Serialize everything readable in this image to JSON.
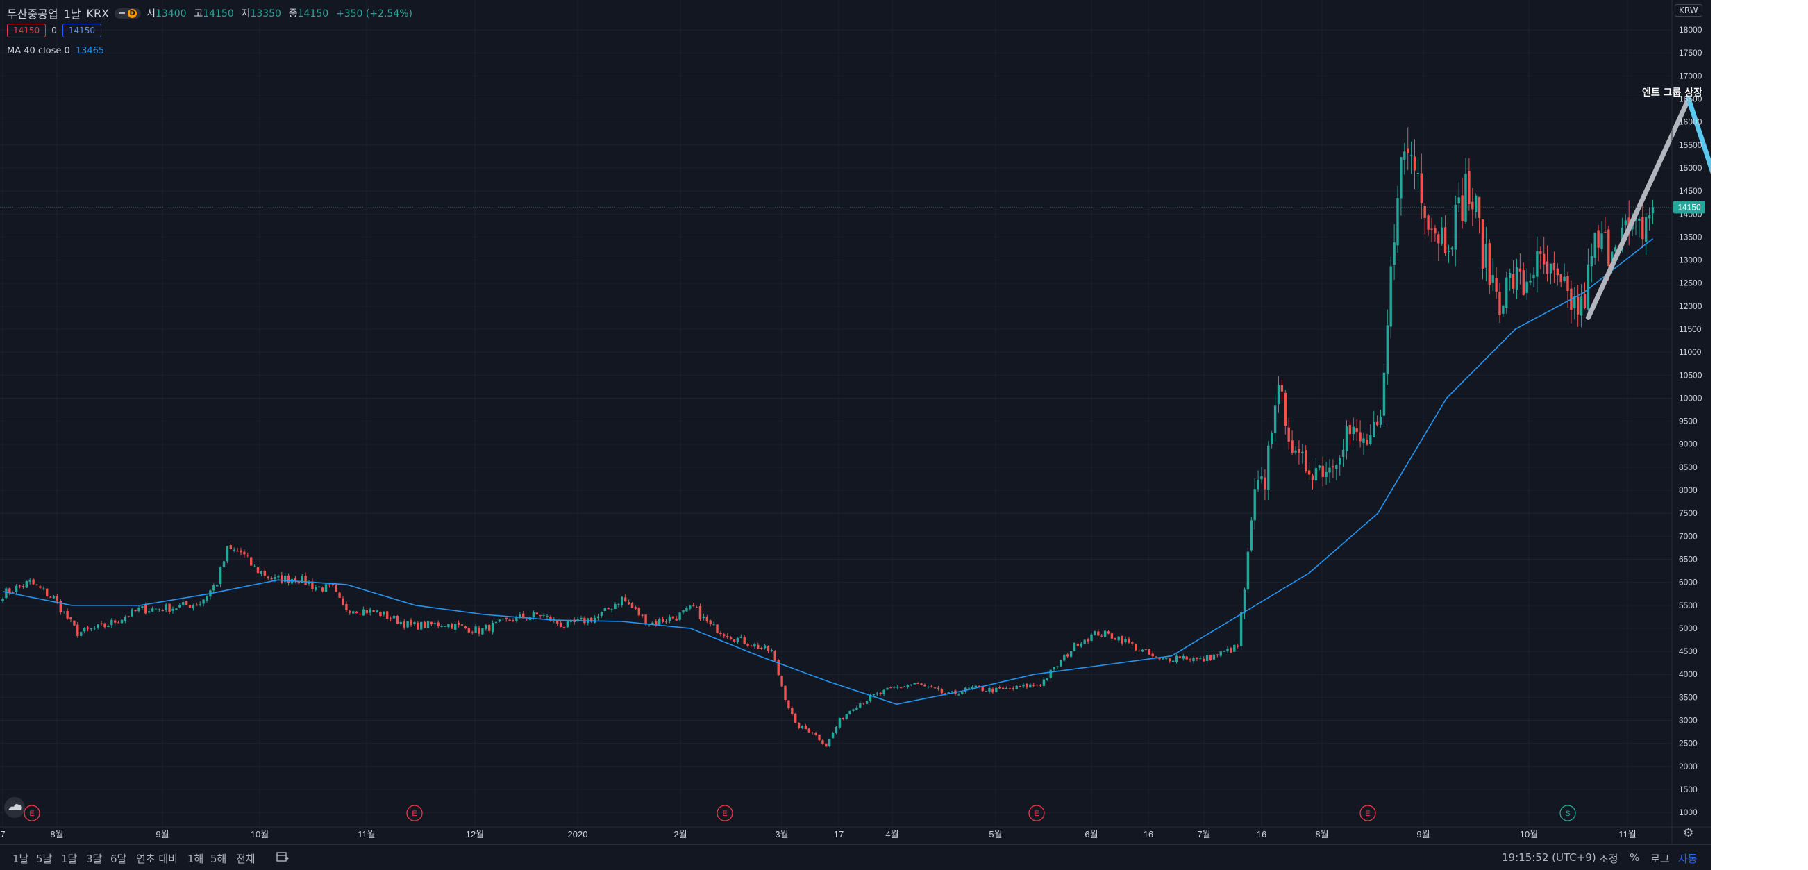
{
  "legend": {
    "symbol": "두산중공업",
    "interval": "1날",
    "exchange": "KRX",
    "status_icon": "minus-icon",
    "d_badge": "D",
    "o_label": "시",
    "o_val": "13400",
    "h_label": "고",
    "h_val": "14150",
    "l_label": "저",
    "l_val": "13350",
    "c_label": "종",
    "c_val": "14150",
    "change": "+350 (+2.54%)",
    "bid": "14150",
    "spread": "0",
    "ask": "14150",
    "ma_label": "MA 40 close 0",
    "ma_value": "13465"
  },
  "currency": "KRW",
  "price_badge": "14150",
  "annotation": "엔트 그룹 상장",
  "events": [
    "E",
    "E",
    "E",
    "E",
    "E",
    "S"
  ],
  "bottom_bar": {
    "ranges": [
      "1날",
      "5날",
      "1달",
      "3달",
      "6달",
      "연초 대비",
      "1해",
      "5해",
      "전체"
    ],
    "compare_icon": "calendar-range-icon",
    "time": "19:15:52 (UTC+9)",
    "adjust": "조정",
    "percent": "%",
    "log": "로그",
    "auto": "자동"
  },
  "colors": {
    "background": "#131722",
    "up": "#26a69a",
    "down": "#ef5350",
    "ma": "#2196f3",
    "grid": "#1e2230",
    "trend_white": "#b2b5be",
    "trend_cyan": "#5bc8f0"
  },
  "chart_data": {
    "type": "candlestick",
    "x_tick_labels": [
      "7",
      "8월",
      "9월",
      "10월",
      "11월",
      "12월",
      "2020",
      "2월",
      "3월",
      "17",
      "4월",
      "5월",
      "6월",
      "16",
      "7월",
      "16",
      "8월",
      "9월",
      "10월",
      "11월"
    ],
    "y_ticks": [
      1000,
      1500,
      2000,
      2500,
      3000,
      3500,
      4000,
      4500,
      5000,
      5500,
      6000,
      6500,
      7000,
      7500,
      8000,
      8500,
      9000,
      9500,
      10000,
      10500,
      11000,
      11500,
      12000,
      12500,
      13000,
      13500,
      14000,
      14500,
      15000,
      15500,
      16000,
      16500,
      17000,
      17500,
      18000
    ],
    "ylim": [
      700,
      18650
    ],
    "last_close": 14150,
    "grid": true,
    "close_path": [
      [
        0,
        5750
      ],
      [
        8,
        6000
      ],
      [
        15,
        5650
      ],
      [
        22,
        4900
      ],
      [
        30,
        5050
      ],
      [
        40,
        5400
      ],
      [
        50,
        5450
      ],
      [
        58,
        5550
      ],
      [
        63,
        6000
      ],
      [
        66,
        6700
      ],
      [
        70,
        6650
      ],
      [
        74,
        6300
      ],
      [
        80,
        6050
      ],
      [
        86,
        6100
      ],
      [
        92,
        5900
      ],
      [
        97,
        5850
      ],
      [
        100,
        5450
      ],
      [
        110,
        5350
      ],
      [
        120,
        5050
      ],
      [
        130,
        5100
      ],
      [
        140,
        4950
      ],
      [
        150,
        5200
      ],
      [
        158,
        5300
      ],
      [
        165,
        5050
      ],
      [
        175,
        5250
      ],
      [
        182,
        5650
      ],
      [
        190,
        5100
      ],
      [
        198,
        5250
      ],
      [
        203,
        5450
      ],
      [
        208,
        5050
      ],
      [
        215,
        4800
      ],
      [
        222,
        4600
      ],
      [
        226,
        4500
      ],
      [
        230,
        3500
      ],
      [
        233,
        2900
      ],
      [
        238,
        2750
      ],
      [
        242,
        2450
      ],
      [
        246,
        3000
      ],
      [
        250,
        3300
      ],
      [
        255,
        3500
      ],
      [
        262,
        3700
      ],
      [
        268,
        3800
      ],
      [
        272,
        3700
      ],
      [
        278,
        3550
      ],
      [
        285,
        3700
      ],
      [
        292,
        3650
      ],
      [
        298,
        3700
      ],
      [
        305,
        3800
      ],
      [
        310,
        4200
      ],
      [
        316,
        4700
      ],
      [
        322,
        4900
      ],
      [
        328,
        4800
      ],
      [
        335,
        4500
      ],
      [
        340,
        4300
      ],
      [
        346,
        4400
      ],
      [
        352,
        4300
      ],
      [
        358,
        4450
      ],
      [
        363,
        4600
      ],
      [
        366,
        6500
      ],
      [
        368,
        7900
      ],
      [
        371,
        8200
      ],
      [
        374,
        10100
      ],
      [
        377,
        9700
      ],
      [
        380,
        8600
      ],
      [
        385,
        8500
      ],
      [
        390,
        8500
      ],
      [
        395,
        9300
      ],
      [
        400,
        9000
      ],
      [
        405,
        9300
      ],
      [
        408,
        12600
      ],
      [
        410,
        14800
      ],
      [
        413,
        15400
      ],
      [
        416,
        14900
      ],
      [
        420,
        13800
      ],
      [
        424,
        13500
      ],
      [
        428,
        14000
      ],
      [
        430,
        14600
      ],
      [
        433,
        14000
      ],
      [
        436,
        12900
      ],
      [
        440,
        12200
      ],
      [
        444,
        12600
      ],
      [
        447,
        12400
      ],
      [
        450,
        12900
      ],
      [
        454,
        12700
      ],
      [
        458,
        12300
      ],
      [
        461,
        12100
      ],
      [
        464,
        11900
      ],
      [
        468,
        13300
      ],
      [
        472,
        13300
      ],
      [
        475,
        13700
      ],
      [
        478,
        13500
      ],
      [
        481,
        13600
      ],
      [
        485,
        14150
      ]
    ],
    "series": [
      {
        "name": "MA 40 close 0",
        "type": "line",
        "values": [
          5800,
          5500,
          5500,
          5750,
          6050,
          5950,
          5500,
          5300,
          5180,
          5150,
          5000,
          4400,
          3850,
          3350,
          3650,
          4000,
          4200,
          4400,
          5300,
          6200,
          7500,
          10000,
          11500,
          12300,
          13465
        ]
      }
    ],
    "annotations": [
      {
        "text": "엔트 그룹 상장"
      }
    ]
  }
}
